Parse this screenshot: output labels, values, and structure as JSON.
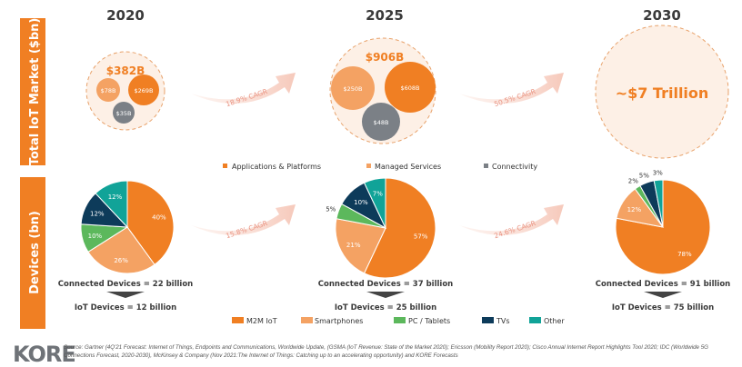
{
  "side_labels": {
    "market": "Total IoT Market ($bn)",
    "devices": "Devices (bn)"
  },
  "years": [
    {
      "year": "2020",
      "market_total": "$382B",
      "bubbles": [
        "$78B",
        "$269B",
        "$35B"
      ],
      "pie": [
        40,
        26,
        10,
        12,
        12
      ],
      "connected": "Connected Devices = 22 billion",
      "iot": "IoT Devices = 12 billion"
    },
    {
      "year": "2025",
      "market_total": "$906B",
      "bubbles": [
        "$250B",
        "$608B",
        "$48B"
      ],
      "pie": [
        57,
        21,
        5,
        10,
        7
      ],
      "connected": "Connected Devices = 37 billion",
      "iot": "IoT Devices = 25 billion"
    },
    {
      "year": "2030",
      "market_total": "~$7 Trillion",
      "pie": [
        78,
        12,
        2,
        5,
        3
      ],
      "connected": "Connected Devices = 91 billion",
      "iot": "IoT Devices = 75 billion"
    }
  ],
  "cagr": {
    "market_1": "18.9% CAGR",
    "market_2": "50.5% CAGR",
    "devices_1": "15.8% CAGR",
    "devices_2": "24.6% CAGR"
  },
  "market_legend": [
    {
      "label": "Applications & Platforms",
      "color": "#f07f23"
    },
    {
      "label": "Managed Services",
      "color": "#f4a263"
    },
    {
      "label": "Connectivity",
      "color": "#7b8086"
    }
  ],
  "device_legend": [
    {
      "label": "M2M IoT",
      "color": "#f07f23"
    },
    {
      "label": "Smartphones",
      "color": "#f4a263"
    },
    {
      "label": "PC / Tablets",
      "color": "#5cb85c"
    },
    {
      "label": "TVs",
      "color": "#0d3b5a"
    },
    {
      "label": "Other",
      "color": "#11a398"
    }
  ],
  "logo": "KORE",
  "source": "Source: Gartner (4Q'21 Forecast: Internet of Things, Endpoints and Communications, Worldwide Update,  (GSMA (IoT Revenue: State of the Market 2020); Ericsson (Mobility Report 2020); Cisco Annual Internet Report Highlights Tool 2020; IDC (Worldwide 5G Connections Forecast, 2020-2030), McKinsey & Company (Nov 2021:The Internet of Things: Catching up to an accelerating opportunity) and KORE Forecasts",
  "colors": {
    "accent": "#f07f23",
    "bubble_bg": "#fdf0e6",
    "arrow": "#f6cfc4",
    "text_dark": "#3a3a3a"
  }
}
